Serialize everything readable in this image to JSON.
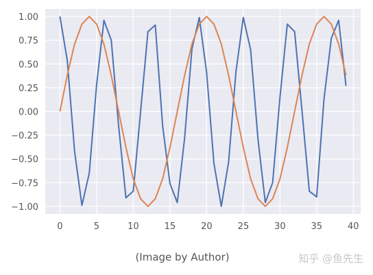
{
  "chart_data": {
    "type": "line",
    "title": "",
    "xlabel": "",
    "ylabel": "",
    "xlim": [
      -2,
      41
    ],
    "ylim": [
      -1.08,
      1.08
    ],
    "xticks": [
      0,
      5,
      10,
      15,
      20,
      25,
      30,
      35,
      40
    ],
    "yticks": [
      -1.0,
      -0.75,
      -0.5,
      -0.25,
      0.0,
      0.25,
      0.5,
      0.75,
      1.0
    ],
    "xtick_labels": [
      "0",
      "5",
      "10",
      "15",
      "20",
      "25",
      "30",
      "35",
      "40"
    ],
    "ytick_labels": [
      "−1.00",
      "−0.75",
      "−0.50",
      "−0.25",
      "0.00",
      "0.25",
      "0.50",
      "0.75",
      "1.00"
    ],
    "grid": true,
    "background": "#eaeaf2",
    "series": [
      {
        "color": "#4c72b0",
        "x": [
          0,
          1,
          2,
          3,
          4,
          5,
          6,
          7,
          8,
          9,
          10,
          11,
          12,
          13,
          14,
          15,
          16,
          17,
          18,
          19,
          20,
          21,
          22,
          23,
          24,
          25,
          26,
          27,
          28,
          29,
          30,
          31,
          32,
          33,
          34,
          35,
          36,
          37,
          38,
          39
        ],
        "values": [
          1.0,
          0.54,
          -0.42,
          -0.99,
          -0.65,
          0.28,
          0.96,
          0.75,
          -0.15,
          -0.91,
          -0.84,
          0.0,
          0.84,
          0.91,
          -0.15,
          -0.76,
          -0.96,
          -0.28,
          0.66,
          0.99,
          0.41,
          -0.55,
          -1.0,
          -0.53,
          0.42,
          0.99,
          0.65,
          -0.29,
          -0.96,
          -0.75,
          0.15,
          0.92,
          0.84,
          0.01,
          -0.84,
          -0.9,
          0.13,
          0.77,
          0.96,
          0.27
        ]
      },
      {
        "color": "#dd8452",
        "x": [
          0,
          1,
          2,
          3,
          4,
          5,
          6,
          7,
          8,
          9,
          10,
          11,
          12,
          13,
          14,
          15,
          16,
          17,
          18,
          19,
          20,
          21,
          22,
          23,
          24,
          25,
          26,
          27,
          28,
          29,
          30,
          31,
          32,
          33,
          34,
          35,
          36,
          37,
          38,
          39
        ],
        "values": [
          0.0,
          0.38,
          0.71,
          0.92,
          1.0,
          0.92,
          0.71,
          0.38,
          0.0,
          -0.38,
          -0.71,
          -0.92,
          -1.0,
          -0.92,
          -0.71,
          -0.38,
          0.0,
          0.38,
          0.71,
          0.92,
          1.0,
          0.92,
          0.71,
          0.38,
          0.0,
          -0.38,
          -0.71,
          -0.92,
          -1.0,
          -0.92,
          -0.71,
          -0.38,
          0.0,
          0.38,
          0.71,
          0.92,
          1.0,
          0.92,
          0.71,
          0.38
        ]
      }
    ]
  },
  "caption": "(Image by Author)",
  "watermark": "知乎 @鱼先生"
}
